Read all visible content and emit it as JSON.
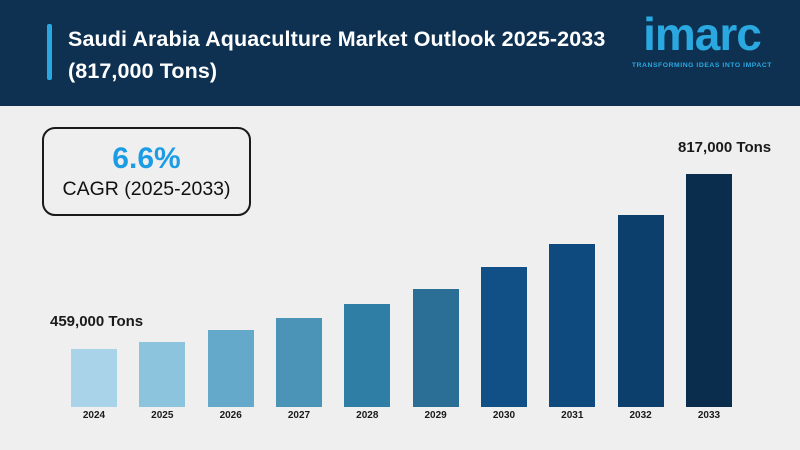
{
  "page": {
    "background": "#efefef"
  },
  "header": {
    "background": "#0e3151",
    "accent_color": "#2ba7e0",
    "title": "Saudi Arabia Aquaculture Market Outlook 2025-2033 (817,000 Tons)",
    "logo": {
      "text": "imarc",
      "tagline": "TRANSFORMING IDEAS INTO IMPACT",
      "color": "#2aa8e0"
    }
  },
  "cagr_box": {
    "value": "6.6%",
    "label": "CAGR (2025-2033)",
    "value_color": "#1b9ce4"
  },
  "chart_data": {
    "type": "bar",
    "title": "Saudi Arabia Aquaculture Market Outlook 2025-2033 (817,000 Tons)",
    "unit": "Tons",
    "categories": [
      "2024",
      "2025",
      "2026",
      "2027",
      "2028",
      "2029",
      "2030",
      "2031",
      "2032",
      "2033"
    ],
    "values": [
      459000,
      473000,
      498000,
      522000,
      551000,
      582000,
      627000,
      674000,
      733000,
      817000
    ],
    "bar_colors": [
      "#a8d3e8",
      "#8cc4de",
      "#64a8ca",
      "#4b94b8",
      "#2e7ea6",
      "#2c6f96",
      "#115086",
      "#0f4a7e",
      "#0d3f6d",
      "#0b2d4d"
    ],
    "data_labels": {
      "first": "459,000 Tons",
      "last": "817,000 Tons"
    },
    "ylim": [
      340000,
      817000
    ],
    "grid": false,
    "legend": "none",
    "xlabel": "",
    "ylabel": ""
  }
}
